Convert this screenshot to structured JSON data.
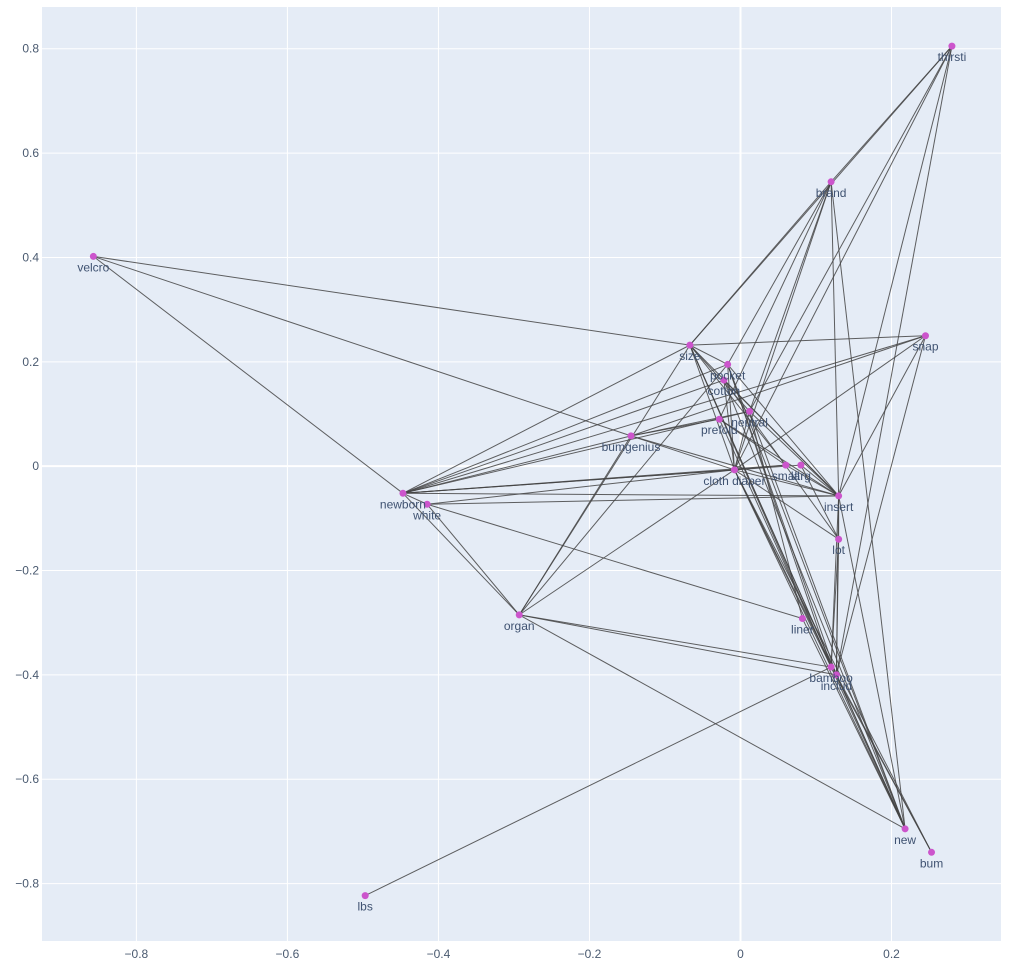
{
  "chart_data": {
    "type": "network",
    "title": "",
    "xlabel": "",
    "ylabel": "",
    "xlim": [
      -0.925,
      0.345
    ],
    "ylim": [
      -0.91,
      0.88
    ],
    "x_ticks": [
      -0.8,
      -0.6,
      -0.4,
      -0.2,
      0,
      0.2
    ],
    "x_tick_labels": [
      "−0.8",
      "−0.6",
      "−0.4",
      "−0.2",
      "0",
      "0.2"
    ],
    "y_ticks": [
      -0.8,
      -0.6,
      -0.4,
      -0.2,
      0,
      0.2,
      0.4,
      0.6,
      0.8
    ],
    "y_tick_labels": [
      "−0.8",
      "−0.6",
      "−0.4",
      "−0.2",
      "0",
      "0.2",
      "0.4",
      "0.6",
      "0.8"
    ],
    "grid": true,
    "colors": {
      "plot_bg": "#e5ecf6",
      "grid": "#ffffff",
      "node": "#cc55cc",
      "edge": "#444444",
      "label": "#3f5271"
    },
    "nodes": [
      {
        "label": "thirsti",
        "x": 0.28,
        "y": 0.805
      },
      {
        "label": "brand",
        "x": 0.12,
        "y": 0.545
      },
      {
        "label": "velcro",
        "x": -0.857,
        "y": 0.402
      },
      {
        "label": "snap",
        "x": 0.245,
        "y": 0.25
      },
      {
        "label": "size",
        "x": -0.067,
        "y": 0.232
      },
      {
        "label": "pocket",
        "x": -0.017,
        "y": 0.195
      },
      {
        "label": "cotton",
        "x": -0.022,
        "y": 0.165
      },
      {
        "label": "neutral",
        "x": 0.012,
        "y": 0.105
      },
      {
        "label": "prefold",
        "x": -0.028,
        "y": 0.09
      },
      {
        "label": "bumgenius",
        "x": -0.145,
        "y": 0.058
      },
      {
        "label": "cloth diaper",
        "x": -0.008,
        "y": -0.007
      },
      {
        "label": "small",
        "x": 0.06,
        "y": 0.002
      },
      {
        "label": "larg",
        "x": 0.08,
        "y": 0.002
      },
      {
        "label": "newborn",
        "x": -0.447,
        "y": -0.052
      },
      {
        "label": "white",
        "x": -0.415,
        "y": -0.073
      },
      {
        "label": "insert",
        "x": 0.13,
        "y": -0.057
      },
      {
        "label": "lot",
        "x": 0.13,
        "y": -0.14
      },
      {
        "label": "organ",
        "x": -0.293,
        "y": -0.285
      },
      {
        "label": "liner",
        "x": 0.082,
        "y": -0.292
      },
      {
        "label": "bamboo",
        "x": 0.12,
        "y": -0.385
      },
      {
        "label": "includ",
        "x": 0.127,
        "y": -0.4
      },
      {
        "label": "new",
        "x": 0.218,
        "y": -0.695
      },
      {
        "label": "bum",
        "x": 0.253,
        "y": -0.74
      },
      {
        "label": "lbs",
        "x": -0.497,
        "y": -0.823
      }
    ],
    "edges": [
      [
        "velcro",
        "size"
      ],
      [
        "velcro",
        "bumgenius"
      ],
      [
        "velcro",
        "newborn"
      ],
      [
        "thirsti",
        "brand"
      ],
      [
        "thirsti",
        "size"
      ],
      [
        "thirsti",
        "insert"
      ],
      [
        "thirsti",
        "cloth diaper"
      ],
      [
        "thirsti",
        "includ"
      ],
      [
        "thirsti",
        "neutral"
      ],
      [
        "brand",
        "size"
      ],
      [
        "brand",
        "cloth diaper"
      ],
      [
        "brand",
        "neutral"
      ],
      [
        "brand",
        "insert"
      ],
      [
        "brand",
        "new"
      ],
      [
        "brand",
        "pocket"
      ],
      [
        "brand",
        "prefold"
      ],
      [
        "snap",
        "newborn"
      ],
      [
        "snap",
        "size"
      ],
      [
        "snap",
        "cloth diaper"
      ],
      [
        "snap",
        "insert"
      ],
      [
        "snap",
        "includ"
      ],
      [
        "snap",
        "bumgenius"
      ],
      [
        "size",
        "newborn"
      ],
      [
        "size",
        "organ"
      ],
      [
        "size",
        "cloth diaper"
      ],
      [
        "size",
        "insert"
      ],
      [
        "size",
        "bamboo"
      ],
      [
        "size",
        "neutral"
      ],
      [
        "size",
        "small"
      ],
      [
        "size",
        "pocket"
      ],
      [
        "pocket",
        "newborn"
      ],
      [
        "pocket",
        "cloth diaper"
      ],
      [
        "pocket",
        "insert"
      ],
      [
        "pocket",
        "bamboo"
      ],
      [
        "pocket",
        "organ"
      ],
      [
        "cotton",
        "newborn"
      ],
      [
        "cotton",
        "cloth diaper"
      ],
      [
        "cotton",
        "insert"
      ],
      [
        "cotton",
        "lot"
      ],
      [
        "neutral",
        "newborn"
      ],
      [
        "neutral",
        "bumgenius"
      ],
      [
        "neutral",
        "insert"
      ],
      [
        "neutral",
        "cloth diaper"
      ],
      [
        "prefold",
        "bumgenius"
      ],
      [
        "prefold",
        "insert"
      ],
      [
        "prefold",
        "bamboo"
      ],
      [
        "prefold",
        "small"
      ],
      [
        "bumgenius",
        "newborn"
      ],
      [
        "bumgenius",
        "cloth diaper"
      ],
      [
        "bumgenius",
        "organ"
      ],
      [
        "bumgenius",
        "insert"
      ],
      [
        "cloth diaper",
        "newborn"
      ],
      [
        "cloth diaper",
        "white"
      ],
      [
        "cloth diaper",
        "organ"
      ],
      [
        "cloth diaper",
        "insert"
      ],
      [
        "cloth diaper",
        "bamboo"
      ],
      [
        "cloth diaper",
        "includ"
      ],
      [
        "cloth diaper",
        "new"
      ],
      [
        "cloth diaper",
        "bum"
      ],
      [
        "cloth diaper",
        "lot"
      ],
      [
        "cloth diaper",
        "small"
      ],
      [
        "small",
        "newborn"
      ],
      [
        "small",
        "insert"
      ],
      [
        "larg",
        "newborn"
      ],
      [
        "larg",
        "insert"
      ],
      [
        "larg",
        "lot"
      ],
      [
        "newborn",
        "organ"
      ],
      [
        "newborn",
        "insert"
      ],
      [
        "newborn",
        "white"
      ],
      [
        "white",
        "organ"
      ],
      [
        "white",
        "insert"
      ],
      [
        "white",
        "liner"
      ],
      [
        "insert",
        "lot"
      ],
      [
        "insert",
        "bamboo"
      ],
      [
        "insert",
        "includ"
      ],
      [
        "insert",
        "new"
      ],
      [
        "lot",
        "bamboo"
      ],
      [
        "lot",
        "includ"
      ],
      [
        "organ",
        "bamboo"
      ],
      [
        "organ",
        "new"
      ],
      [
        "organ",
        "includ"
      ],
      [
        "liner",
        "new"
      ],
      [
        "bamboo",
        "new"
      ],
      [
        "bamboo",
        "bum"
      ],
      [
        "includ",
        "new"
      ],
      [
        "includ",
        "bum"
      ],
      [
        "lbs",
        "bamboo"
      ],
      [
        "neutral",
        "liner"
      ],
      [
        "neutral",
        "new"
      ],
      [
        "cotton",
        "new"
      ],
      [
        "size",
        "new"
      ],
      [
        "pocket",
        "new"
      ],
      [
        "size",
        "includ"
      ],
      [
        "pocket",
        "includ"
      ]
    ]
  }
}
